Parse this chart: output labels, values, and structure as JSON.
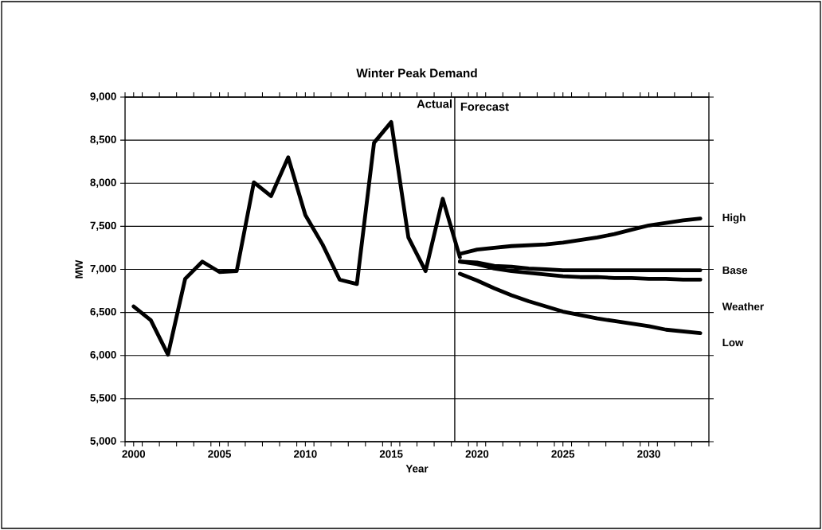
{
  "chart_data": {
    "type": "line",
    "title": "Winter Peak Demand",
    "xlabel": "Year",
    "ylabel": "MW",
    "x": [
      2000,
      2001,
      2002,
      2003,
      2004,
      2005,
      2006,
      2007,
      2008,
      2009,
      2010,
      2011,
      2012,
      2013,
      2014,
      2015,
      2016,
      2017,
      2018,
      2019
    ],
    "series": [
      {
        "name": null,
        "color": "#000000",
        "values": [
          6570,
          6410,
          6010,
          6890,
          7090,
          6970,
          6980,
          8010,
          7850,
          8300,
          7630,
          7290,
          6880,
          6830,
          8470,
          8710,
          7370,
          6980,
          7820,
          7140
        ]
      },
      {
        "name": "High",
        "color": "#000000",
        "x": [
          2019,
          2020,
          2021,
          2022,
          2023,
          2024,
          2025,
          2026,
          2027,
          2028,
          2029,
          2030,
          2031,
          2032,
          2033
        ],
        "values": [
          7180,
          7230,
          7250,
          7270,
          7280,
          7290,
          7310,
          7340,
          7370,
          7410,
          7460,
          7510,
          7540,
          7570,
          7590
        ]
      },
      {
        "name": "Base",
        "color": "#000000",
        "x": [
          2019,
          2020,
          2021,
          2022,
          2023,
          2024,
          2025,
          2026,
          2027,
          2028,
          2029,
          2030,
          2031,
          2032,
          2033
        ],
        "values": [
          7090,
          7080,
          7040,
          7030,
          7010,
          7000,
          6990,
          6990,
          6990,
          6990,
          6990,
          6990,
          6990,
          6990,
          6990
        ]
      },
      {
        "name": "Weather",
        "color": "#000000",
        "x": [
          2019,
          2020,
          2021,
          2022,
          2023,
          2024,
          2025,
          2026,
          2027,
          2028,
          2029,
          2030,
          2031,
          2032,
          2033
        ],
        "values": [
          7090,
          7060,
          7010,
          6980,
          6960,
          6940,
          6920,
          6910,
          6910,
          6900,
          6900,
          6890,
          6890,
          6880,
          6880
        ]
      },
      {
        "name": "Low",
        "color": "#000000",
        "x": [
          2019,
          2020,
          2021,
          2022,
          2023,
          2024,
          2025,
          2026,
          2027,
          2028,
          2029,
          2030,
          2031,
          2032,
          2033
        ],
        "values": [
          6950,
          6870,
          6780,
          6700,
          6630,
          6570,
          6510,
          6470,
          6430,
          6400,
          6370,
          6340,
          6300,
          6280,
          6260
        ]
      }
    ],
    "xlim": [
      1999.5,
      2033.5
    ],
    "xticks": [
      2000,
      2005,
      2010,
      2015,
      2020,
      2025,
      2030,
      {
        "value": 1999.5,
        "label": null
      },
      {
        "value": 2000.5,
        "label": null
      },
      {
        "value": 2001.5,
        "label": null
      },
      {
        "value": 2002.5,
        "label": null
      },
      {
        "value": 2003.5,
        "label": null
      },
      {
        "value": 2004.5,
        "label": null
      },
      {
        "value": 2005.5,
        "label": null
      },
      {
        "value": 2006.5,
        "label": null
      },
      {
        "value": 2007.5,
        "label": null
      },
      {
        "value": 2008.5,
        "label": null
      },
      {
        "value": 2009.5,
        "label": null
      },
      {
        "value": 2010.5,
        "label": null
      },
      {
        "value": 2011.5,
        "label": null
      },
      {
        "value": 2012.5,
        "label": null
      },
      {
        "value": 2013.5,
        "label": null
      },
      {
        "value": 2014.5,
        "label": null
      },
      {
        "value": 2015.5,
        "label": null
      },
      {
        "value": 2016.5,
        "label": null
      },
      {
        "value": 2017.5,
        "label": null
      },
      {
        "value": 2018.5,
        "label": null
      },
      {
        "value": 2019.5,
        "label": null
      },
      {
        "value": 2020.5,
        "label": null
      },
      {
        "value": 2021.5,
        "label": null
      },
      {
        "value": 2022.5,
        "label": null
      },
      {
        "value": 2023.5,
        "label": null
      },
      {
        "value": 2024.5,
        "label": null
      },
      {
        "value": 2025.5,
        "label": null
      },
      {
        "value": 2026.5,
        "label": null
      },
      {
        "value": 2027.5,
        "label": null
      },
      {
        "value": 2028.5,
        "label": null
      },
      {
        "value": 2029.5,
        "label": null
      },
      {
        "value": 2030.5,
        "label": null
      },
      {
        "value": 2031.5,
        "label": null
      },
      {
        "value": 2032.5,
        "label": null
      },
      {
        "value": 2033.5,
        "label": null
      }
    ],
    "ylim": [
      5000,
      9000
    ],
    "yticks": [
      {
        "value": 5000,
        "label": "5,000"
      },
      {
        "value": 5500,
        "label": "5,500"
      },
      {
        "value": 6000,
        "label": "6,000"
      },
      {
        "value": 6500,
        "label": "6,500"
      },
      {
        "value": 7000,
        "label": "7,000"
      },
      {
        "value": 7500,
        "label": "7,500"
      },
      {
        "value": 8000,
        "label": "8,000"
      },
      {
        "value": 8500,
        "label": "8,500"
      },
      {
        "value": 9000,
        "label": "9,000"
      }
    ],
    "ref_lines": [
      {
        "axis": "x",
        "value": 2018.7,
        "color": "#000000"
      }
    ],
    "annotations": [
      "Actual",
      "Forecast"
    ],
    "grid": "y",
    "legend": "right",
    "marker": "none",
    "line_style": "solid"
  }
}
